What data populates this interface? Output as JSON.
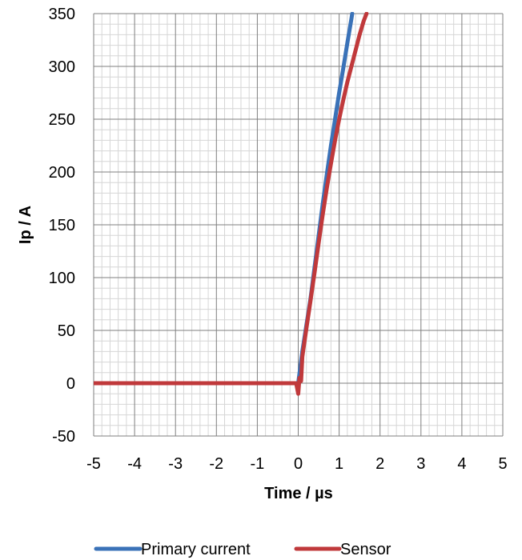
{
  "chart_data": {
    "type": "line",
    "title": "",
    "xlabel": "Time / µs",
    "ylabel": "Ip / A",
    "xlim": [
      -5,
      5
    ],
    "ylim": [
      -50,
      350
    ],
    "x_major_ticks": [
      -5,
      -4,
      -3,
      -2,
      -1,
      0,
      1,
      2,
      3,
      4,
      5
    ],
    "y_major_ticks": [
      -50,
      0,
      50,
      100,
      150,
      200,
      250,
      300,
      350
    ],
    "x_tick_labels": [
      "-5",
      "-4",
      "-3",
      "-2",
      "-1",
      "0",
      "1",
      "2",
      "3",
      "4",
      "5"
    ],
    "y_tick_labels": [
      "-50",
      "0",
      "50",
      "100",
      "150",
      "200",
      "250",
      "300",
      "350"
    ],
    "x_minor_step": 0.2,
    "y_minor_step": 10,
    "grid": true,
    "legend_position": "bottom",
    "series": [
      {
        "name": "Primary current",
        "color": "#3a72b8",
        "points": [
          [
            -5,
            0
          ],
          [
            -4,
            0
          ],
          [
            -3,
            0
          ],
          [
            -2,
            0
          ],
          [
            -1,
            0
          ],
          [
            0,
            0
          ],
          [
            0.05,
            15
          ],
          [
            0.1,
            30
          ],
          [
            0.2,
            55
          ],
          [
            0.3,
            80
          ],
          [
            0.4,
            110
          ],
          [
            0.5,
            140
          ],
          [
            0.6,
            170
          ],
          [
            0.7,
            198
          ],
          [
            0.8,
            225
          ],
          [
            0.9,
            250
          ],
          [
            1.0,
            275
          ],
          [
            1.1,
            298
          ],
          [
            1.2,
            322
          ],
          [
            1.3,
            345
          ],
          [
            1.32,
            350
          ]
        ]
      },
      {
        "name": "Sensor",
        "color": "#c0393b",
        "points": [
          [
            -5,
            0
          ],
          [
            -4,
            0
          ],
          [
            -3,
            0
          ],
          [
            -2,
            0
          ],
          [
            -1,
            0
          ],
          [
            -0.05,
            0
          ],
          [
            0,
            -10
          ],
          [
            0.03,
            5
          ],
          [
            0.07,
            2
          ],
          [
            0.1,
            25
          ],
          [
            0.2,
            52
          ],
          [
            0.3,
            78
          ],
          [
            0.4,
            105
          ],
          [
            0.5,
            133
          ],
          [
            0.6,
            160
          ],
          [
            0.7,
            185
          ],
          [
            0.8,
            208
          ],
          [
            0.9,
            230
          ],
          [
            1.0,
            250
          ],
          [
            1.1,
            268
          ],
          [
            1.2,
            285
          ],
          [
            1.3,
            300
          ],
          [
            1.4,
            315
          ],
          [
            1.5,
            330
          ],
          [
            1.6,
            343
          ],
          [
            1.67,
            350
          ]
        ]
      }
    ]
  }
}
